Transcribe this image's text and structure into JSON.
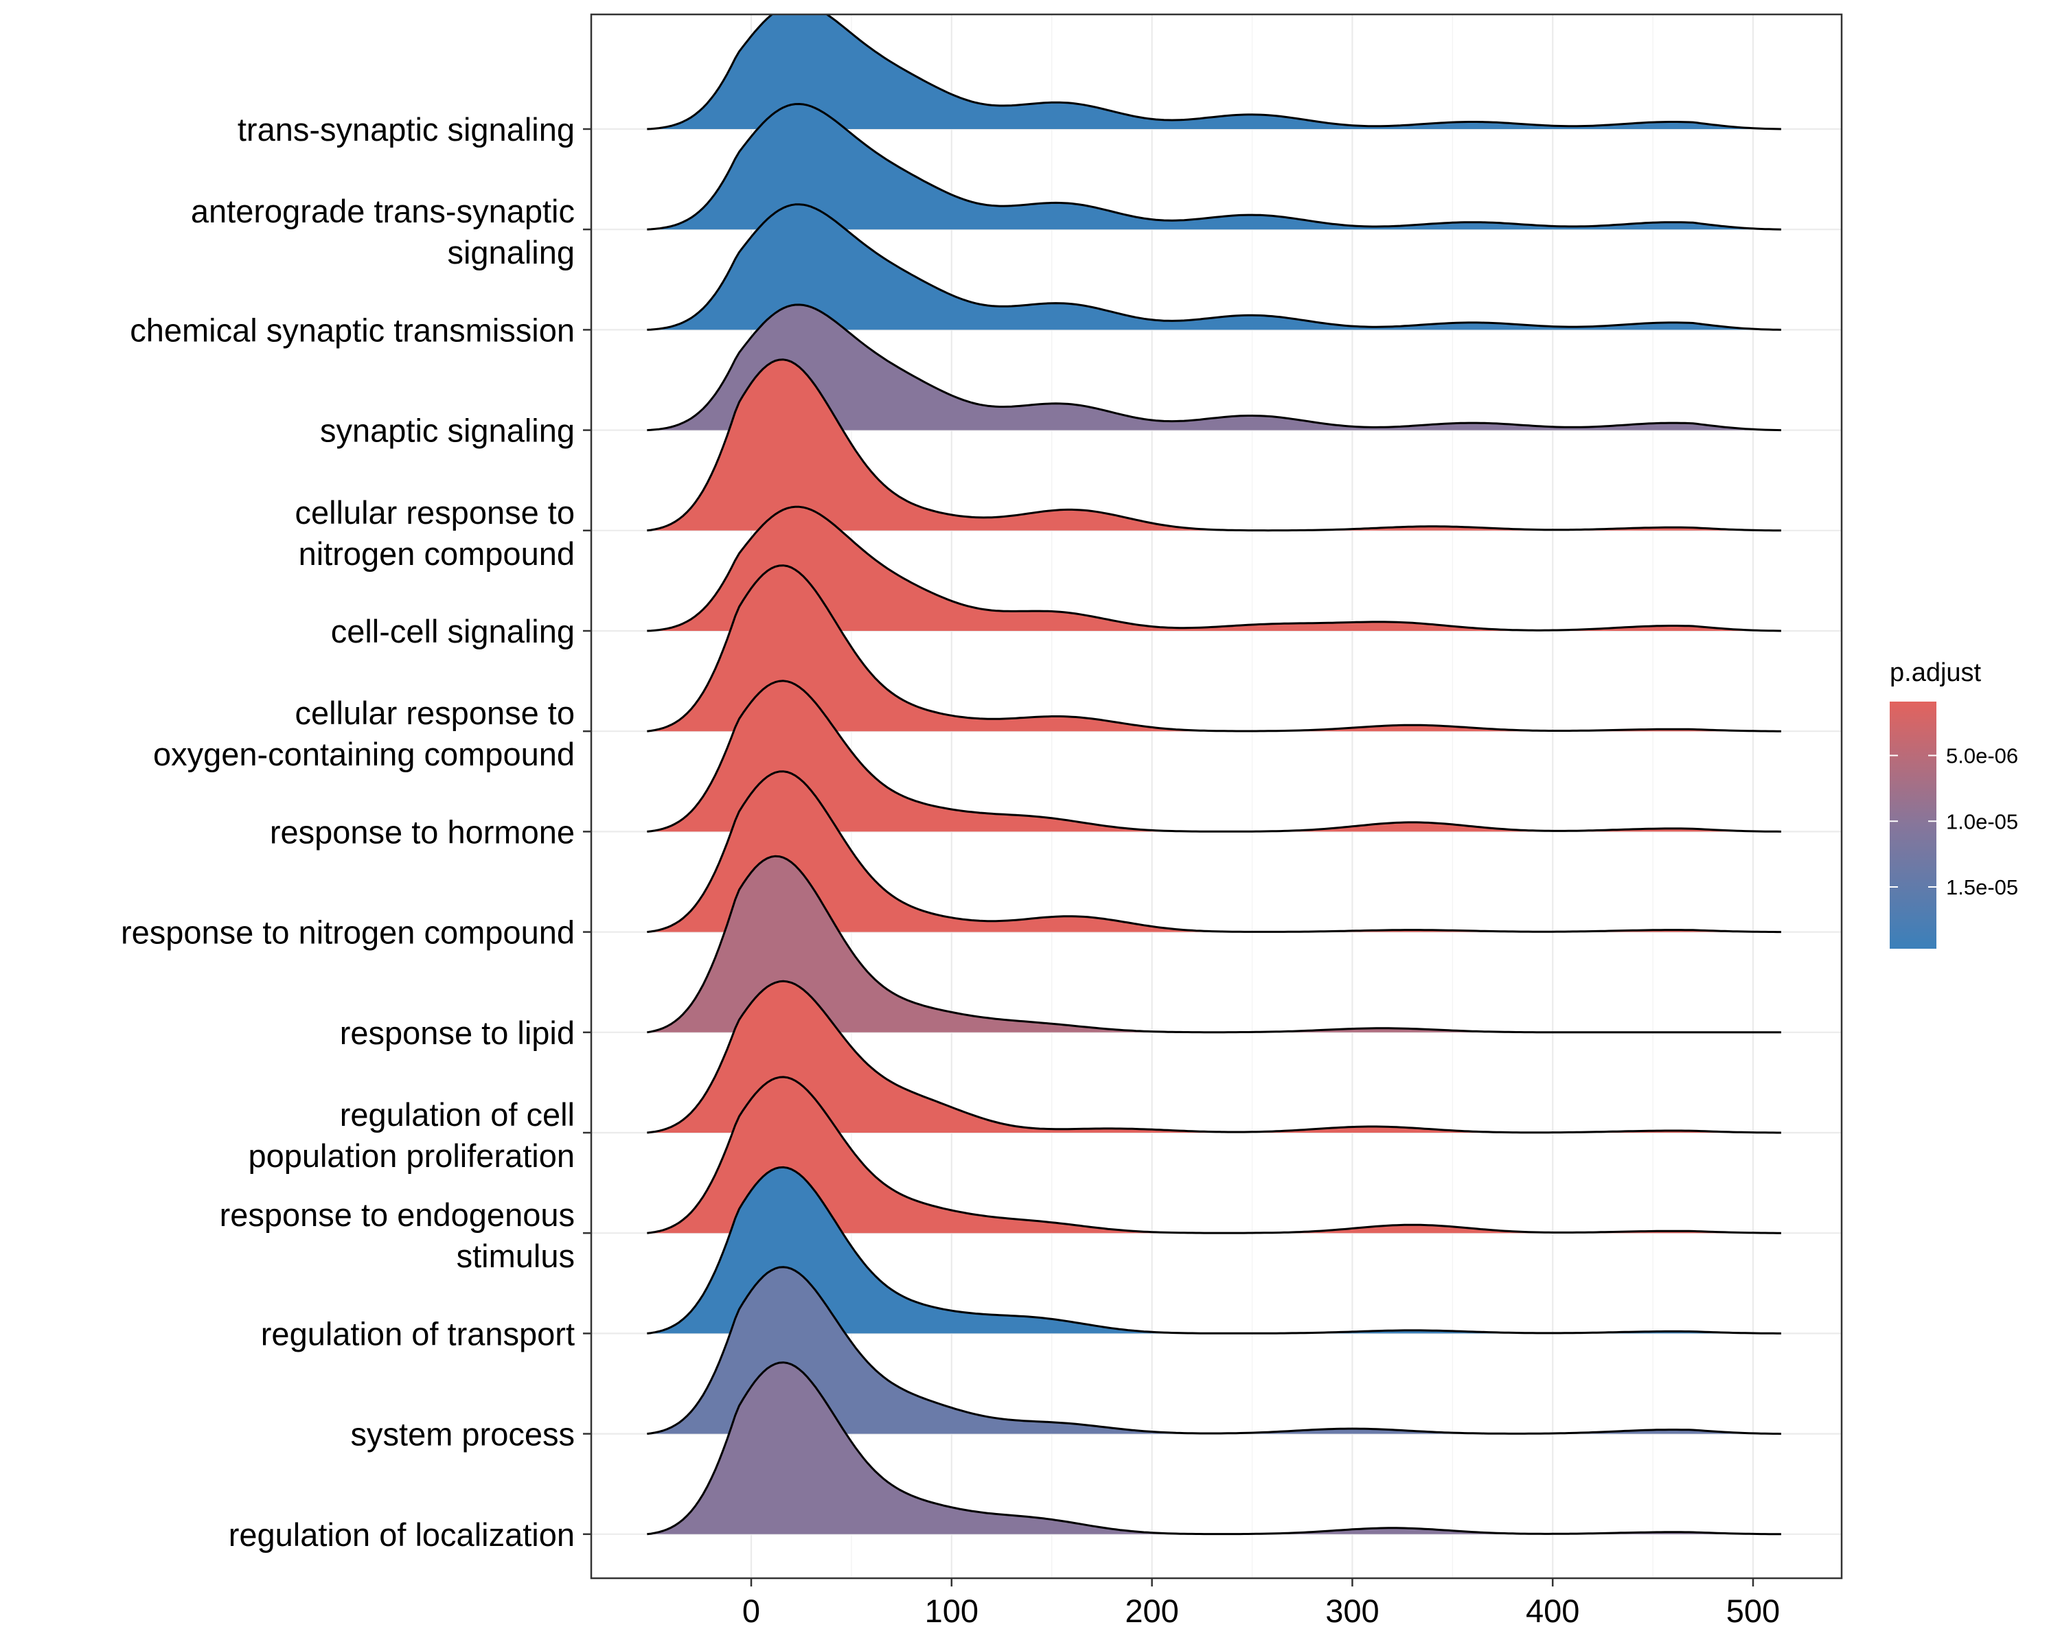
{
  "chart_data": {
    "type": "ridgeline",
    "title": "",
    "xlabel": "",
    "ylabel": "",
    "xlim": [
      -80,
      540
    ],
    "x_ticks": [
      0,
      100,
      200,
      300,
      400,
      500
    ],
    "x_range": [
      -52,
      515
    ],
    "grid": true,
    "legend": {
      "position": "right",
      "title": "p.adjust",
      "ticks": [
        "5.0e-06",
        "1.0e-05",
        "1.5e-05"
      ],
      "tick_values": [
        5e-06,
        1e-05,
        1.5e-05
      ],
      "range": [
        9e-07,
        1.97e-05
      ],
      "low_color": "#E2635E",
      "mid_color": "#86769B",
      "high_color": "#3B80BA"
    },
    "series": [
      {
        "name": "trans-synaptic signaling",
        "label_lines": [
          "trans-synaptic signaling"
        ],
        "p_adjust": 1.9e-05,
        "color": "#3B80BA",
        "density": [
          [
            20,
            1.15
          ],
          [
            75,
            0.42
          ],
          [
            155,
            0.25
          ],
          [
            250,
            0.14
          ],
          [
            360,
            0.07
          ],
          [
            460,
            0.07
          ]
        ]
      },
      {
        "name": "anterograde trans-synaptic signaling",
        "label_lines": [
          "anterograde trans-synaptic",
          "signaling"
        ],
        "p_adjust": 1.9e-05,
        "color": "#3B80BA",
        "density": [
          [
            20,
            1.15
          ],
          [
            75,
            0.42
          ],
          [
            155,
            0.25
          ],
          [
            250,
            0.14
          ],
          [
            360,
            0.07
          ],
          [
            460,
            0.07
          ]
        ]
      },
      {
        "name": "chemical synaptic transmission",
        "label_lines": [
          "chemical synaptic transmission"
        ],
        "p_adjust": 1.9e-05,
        "color": "#3B80BA",
        "density": [
          [
            20,
            1.15
          ],
          [
            75,
            0.42
          ],
          [
            155,
            0.25
          ],
          [
            250,
            0.14
          ],
          [
            360,
            0.07
          ],
          [
            460,
            0.07
          ]
        ]
      },
      {
        "name": "synaptic signaling",
        "label_lines": [
          "synaptic signaling"
        ],
        "p_adjust": 1.2e-05,
        "color": "#86769B",
        "density": [
          [
            20,
            1.15
          ],
          [
            75,
            0.42
          ],
          [
            155,
            0.25
          ],
          [
            250,
            0.14
          ],
          [
            360,
            0.07
          ],
          [
            460,
            0.07
          ]
        ]
      },
      {
        "name": "cellular response to nitrogen compound",
        "label_lines": [
          "cellular response to",
          "nitrogen compound"
        ],
        "p_adjust": 2e-06,
        "color": "#E2635E",
        "density": [
          [
            15,
            1.65
          ],
          [
            80,
            0.15
          ],
          [
            160,
            0.2
          ],
          [
            340,
            0.04
          ],
          [
            460,
            0.03
          ]
        ]
      },
      {
        "name": "cell-cell signaling",
        "label_lines": [
          "cell-cell signaling"
        ],
        "p_adjust": 2e-06,
        "color": "#E2635E",
        "density": [
          [
            20,
            1.15
          ],
          [
            75,
            0.35
          ],
          [
            150,
            0.18
          ],
          [
            260,
            0.06
          ],
          [
            320,
            0.08
          ],
          [
            460,
            0.05
          ]
        ]
      },
      {
        "name": "cellular response to oxygen-containing compound",
        "label_lines": [
          "cellular response to",
          "oxygen-containing compound"
        ],
        "p_adjust": 2e-06,
        "color": "#E2635E",
        "density": [
          [
            15,
            1.6
          ],
          [
            80,
            0.15
          ],
          [
            155,
            0.14
          ],
          [
            330,
            0.06
          ],
          [
            460,
            0.02
          ]
        ]
      },
      {
        "name": "response to hormone",
        "label_lines": [
          "response to hormone"
        ],
        "p_adjust": 2e-06,
        "color": "#E2635E",
        "density": [
          [
            15,
            1.45
          ],
          [
            80,
            0.2
          ],
          [
            140,
            0.13
          ],
          [
            330,
            0.09
          ],
          [
            460,
            0.03
          ]
        ]
      },
      {
        "name": "response to nitrogen compound",
        "label_lines": [
          "response to nitrogen compound"
        ],
        "p_adjust": 2e-06,
        "color": "#E2635E",
        "density": [
          [
            15,
            1.55
          ],
          [
            80,
            0.14
          ],
          [
            160,
            0.15
          ],
          [
            330,
            0.02
          ],
          [
            460,
            0.02
          ]
        ]
      },
      {
        "name": "response to lipid",
        "label_lines": [
          "response to lipid"
        ],
        "p_adjust": 7e-06,
        "color": "#B06E80",
        "density": [
          [
            12,
            1.7
          ],
          [
            80,
            0.2
          ],
          [
            140,
            0.08
          ],
          [
            315,
            0.04
          ]
        ]
      },
      {
        "name": "regulation of cell population proliferation",
        "label_lines": [
          "regulation of cell",
          "population proliferation"
        ],
        "p_adjust": 2e-06,
        "color": "#E2635E",
        "density": [
          [
            15,
            1.45
          ],
          [
            80,
            0.3
          ],
          [
            180,
            0.04
          ],
          [
            310,
            0.06
          ],
          [
            460,
            0.02
          ]
        ]
      },
      {
        "name": "response to endogenous stimulus",
        "label_lines": [
          "response to endogenous",
          "stimulus"
        ],
        "p_adjust": 2e-06,
        "color": "#E2635E",
        "density": [
          [
            15,
            1.5
          ],
          [
            80,
            0.22
          ],
          [
            140,
            0.1
          ],
          [
            330,
            0.08
          ],
          [
            460,
            0.02
          ]
        ]
      },
      {
        "name": "regulation of transport",
        "label_lines": [
          "regulation of transport"
        ],
        "p_adjust": 1.9e-05,
        "color": "#3B80BA",
        "density": [
          [
            15,
            1.6
          ],
          [
            80,
            0.2
          ],
          [
            140,
            0.14
          ],
          [
            330,
            0.03
          ],
          [
            460,
            0.02
          ]
        ]
      },
      {
        "name": "system process",
        "label_lines": [
          "system process"
        ],
        "p_adjust": 1.55e-05,
        "color": "#6A7BA9",
        "density": [
          [
            15,
            1.6
          ],
          [
            80,
            0.28
          ],
          [
            150,
            0.1
          ],
          [
            300,
            0.05
          ],
          [
            460,
            0.04
          ]
        ]
      },
      {
        "name": "regulation of localization",
        "label_lines": [
          "regulation of localization"
        ],
        "p_adjust": 1.2e-05,
        "color": "#86769B",
        "density": [
          [
            15,
            1.65
          ],
          [
            80,
            0.25
          ],
          [
            140,
            0.14
          ],
          [
            320,
            0.06
          ],
          [
            460,
            0.02
          ]
        ]
      }
    ]
  }
}
